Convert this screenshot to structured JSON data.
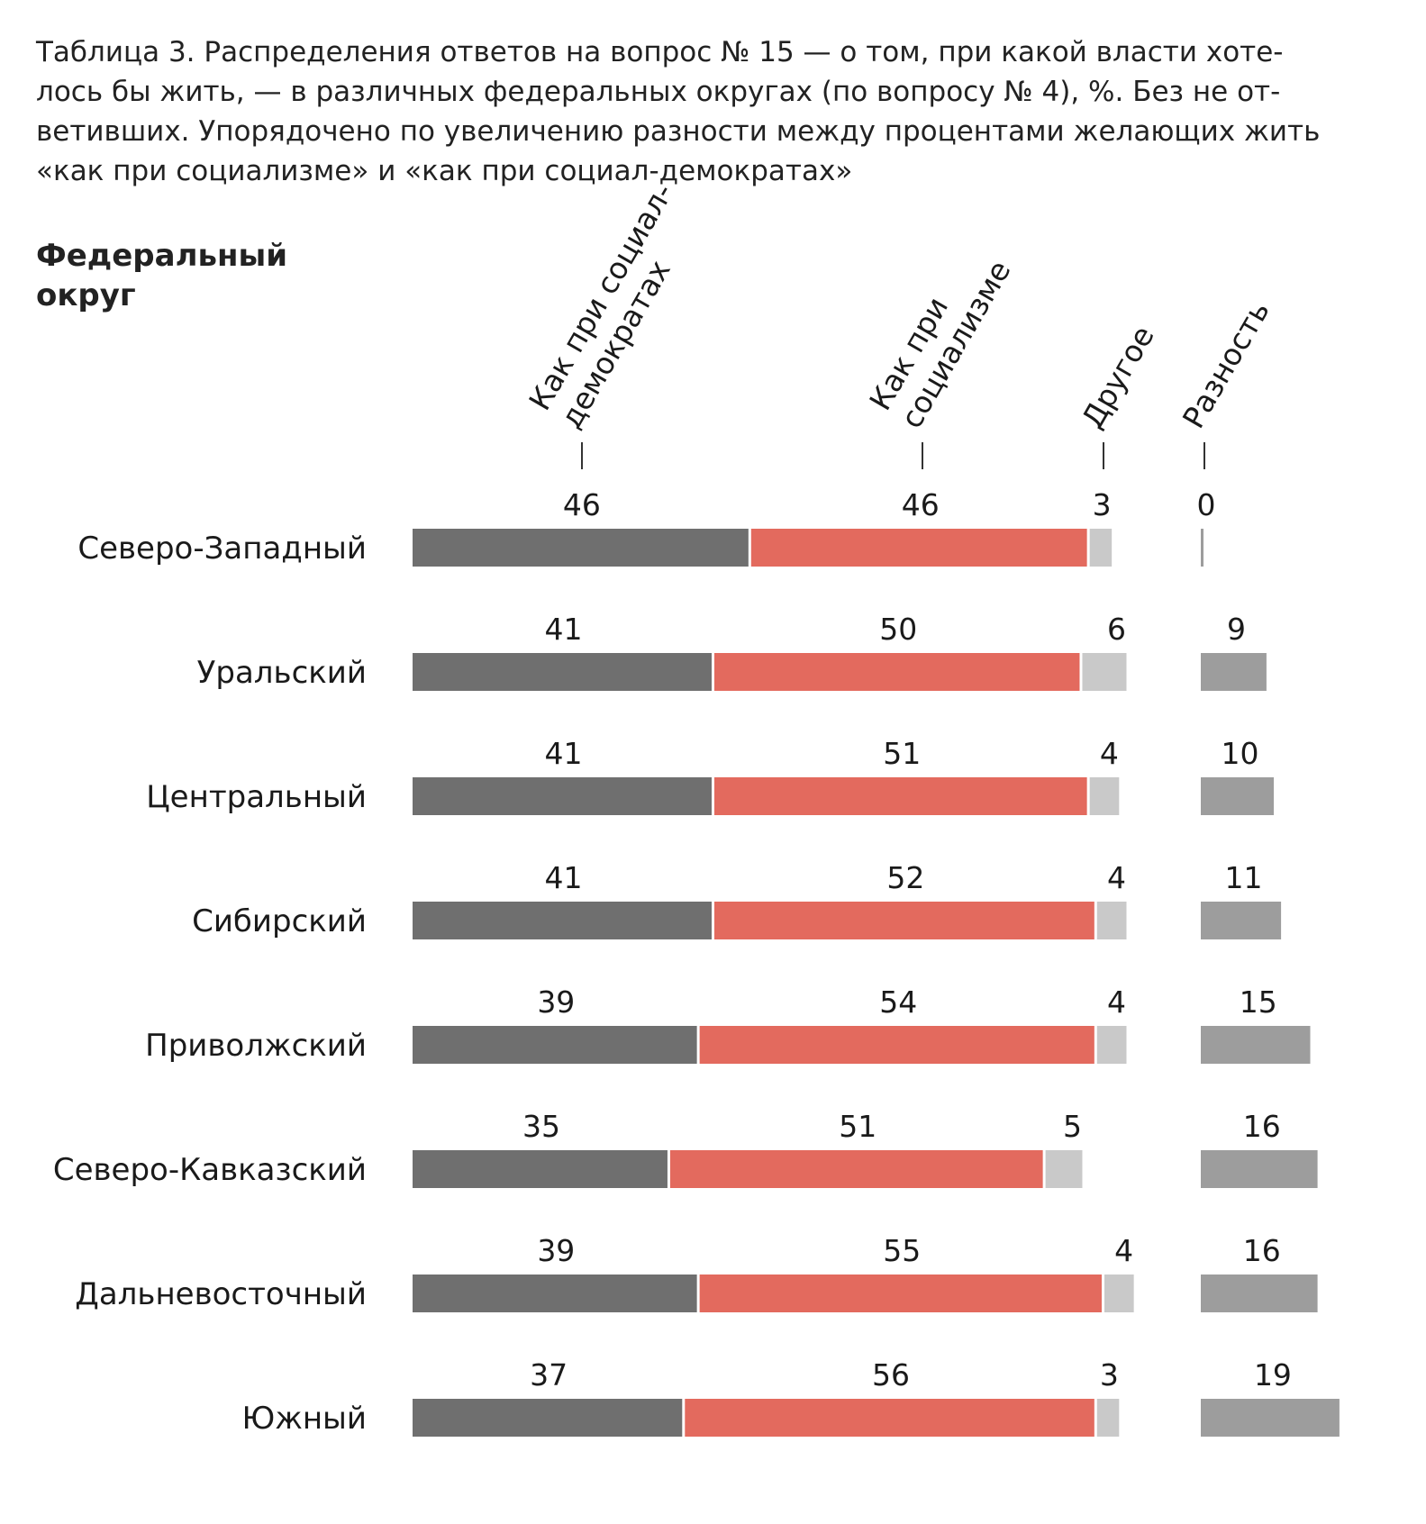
{
  "title": "Таблица 3. Распределения ответов на вопрос № 15 — о том, при какой власти хоте-\nлось бы жить, — в различных федеральных округах (по вопросу № 4), %. Без не от-\nветивших. Упорядочено по увеличению разности между процентами желающих жить\n«как при социализме» и «как при социал-демократах»",
  "row_header": "Федеральный\nокруг",
  "colors": {
    "social_democrats": "#6f6f6f",
    "socialism": "#e36a5e",
    "other": "#c9c9c9",
    "difference": "#9d9d9d"
  },
  "chart_data": {
    "type": "bar",
    "orientation": "horizontal",
    "stacked": true,
    "unit": "%",
    "categories": [
      "Северо-Западный",
      "Уральский",
      "Центральный",
      "Сибирский",
      "Приволжский",
      "Северо-Кавказский",
      "Дальневосточный",
      "Южный"
    ],
    "column_headers": [
      [
        "Как при социал-",
        "демократах"
      ],
      [
        "Как при",
        "социализме"
      ],
      [
        "Другое"
      ],
      [
        "Разность"
      ]
    ],
    "series": [
      {
        "name": "Как при социал-демократах",
        "values": [
          46,
          41,
          41,
          41,
          39,
          35,
          39,
          37
        ]
      },
      {
        "name": "Как при социализме",
        "values": [
          46,
          50,
          51,
          52,
          54,
          51,
          55,
          56
        ]
      },
      {
        "name": "Другое",
        "values": [
          3,
          6,
          4,
          4,
          4,
          5,
          4,
          3
        ]
      }
    ],
    "difference": {
      "name": "Разность",
      "values": [
        0,
        9,
        10,
        11,
        15,
        16,
        16,
        19
      ]
    }
  }
}
